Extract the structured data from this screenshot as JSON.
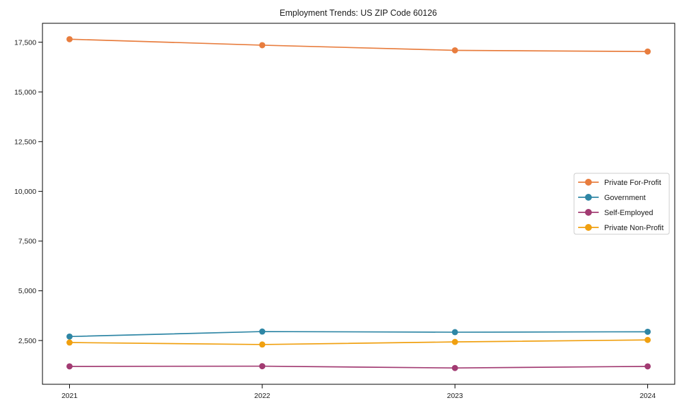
{
  "chart_data": {
    "type": "line",
    "title": "Employment Trends: US ZIP Code 60126",
    "xlabel": "",
    "ylabel": "",
    "x": [
      "2021",
      "2022",
      "2023",
      "2024"
    ],
    "series": [
      {
        "name": "Private For-Profit",
        "color": "#E87D3E",
        "values": [
          17650,
          17350,
          17090,
          17030
        ]
      },
      {
        "name": "Government",
        "color": "#2E86A5",
        "values": [
          2700,
          2950,
          2920,
          2940
        ]
      },
      {
        "name": "Self-Employed",
        "color": "#A23B72",
        "values": [
          1200,
          1210,
          1120,
          1200
        ]
      },
      {
        "name": "Private Non-Profit",
        "color": "#F0A010",
        "values": [
          2400,
          2300,
          2430,
          2530
        ]
      }
    ],
    "ylim": [
      300,
      18450
    ],
    "yticks": [
      2500,
      5000,
      7500,
      10000,
      12500,
      15000,
      17500
    ],
    "grid": false,
    "legend": {
      "position": "center right",
      "background": "#ffffff",
      "border_color": "#cccccc"
    },
    "axis_color": "#000000",
    "text_color": "#1a1a1a"
  }
}
